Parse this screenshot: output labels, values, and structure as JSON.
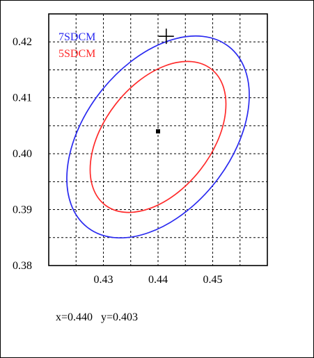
{
  "chart_data": {
    "type": "scatter",
    "title": "",
    "xlabel": "",
    "ylabel": "",
    "xlim": [
      0.42,
      0.46
    ],
    "ylim": [
      0.38,
      0.425
    ],
    "x_ticks": [
      0.43,
      0.44,
      0.45
    ],
    "x_tick_labels": [
      "0.43",
      "0.44",
      "0.45"
    ],
    "y_ticks": [
      0.38,
      0.39,
      0.4,
      0.41,
      0.42
    ],
    "y_tick_labels": [
      "0.38",
      "0.39",
      "0.40",
      "0.41",
      "0.42"
    ],
    "grid": true,
    "legend_position": "top-left",
    "series": [
      {
        "name": "7SDCM",
        "kind": "ellipse",
        "color": "#2a2af0",
        "center": [
          0.44,
          0.403
        ],
        "x_extent": [
          0.424,
          0.454
        ],
        "y_extent": [
          0.3875,
          0.4205
        ]
      },
      {
        "name": "5SDCM",
        "kind": "ellipse",
        "color": "#ff2a2a",
        "center": [
          0.44,
          0.403
        ],
        "x_extent": [
          0.429,
          0.4505
        ],
        "y_extent": [
          0.392,
          0.416
        ]
      }
    ],
    "center_point": {
      "x": 0.44,
      "y": 0.404,
      "color": "#000000"
    },
    "target_marker": {
      "x": 0.4415,
      "y": 0.421,
      "color": "#000000"
    }
  },
  "readout": {
    "x_label": "x=0.440",
    "y_label": "y=0.403"
  }
}
